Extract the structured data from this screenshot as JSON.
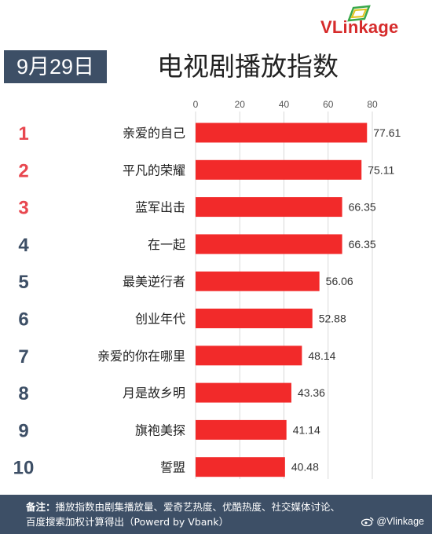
{
  "header": {
    "date": "9月29日",
    "title": "电视剧播放指数",
    "logo": "VLinkage"
  },
  "chart_data": {
    "type": "bar",
    "orientation": "horizontal",
    "title": "电视剧播放指数",
    "ranks": [
      "1",
      "2",
      "3",
      "4",
      "5",
      "6",
      "7",
      "8",
      "9",
      "10"
    ],
    "categories": [
      "亲爱的自己",
      "平凡的荣耀",
      "蓝军出击",
      "在一起",
      "最美逆行者",
      "创业年代",
      "亲爱的你在哪里",
      "月是故乡明",
      "旗袍美探",
      "誓盟"
    ],
    "values": [
      77.61,
      75.11,
      66.35,
      66.35,
      56.06,
      52.88,
      48.14,
      43.36,
      41.14,
      40.48
    ],
    "value_labels": [
      "77.61",
      "75.11",
      "66.35",
      "66.35",
      "56.06",
      "52.88",
      "48.14",
      "43.36",
      "41.14",
      "40.48"
    ],
    "xticks": [
      "0",
      "20",
      "40",
      "60",
      "80"
    ],
    "xlim": [
      0,
      80
    ],
    "grid": true,
    "bar_color": "#f22a2a",
    "rank_colors": {
      "top3": "#e8474f",
      "rest": "#3d4f66"
    }
  },
  "footer": {
    "note_label": "备注：",
    "note_line1": "播放指数由剧集播放量、爱奇艺热度、优酷热度、社交媒体讨论、",
    "note_line2": "百度搜索加权计算得出（Powerd by Vbank）",
    "weibo": "@Vlinkage"
  }
}
